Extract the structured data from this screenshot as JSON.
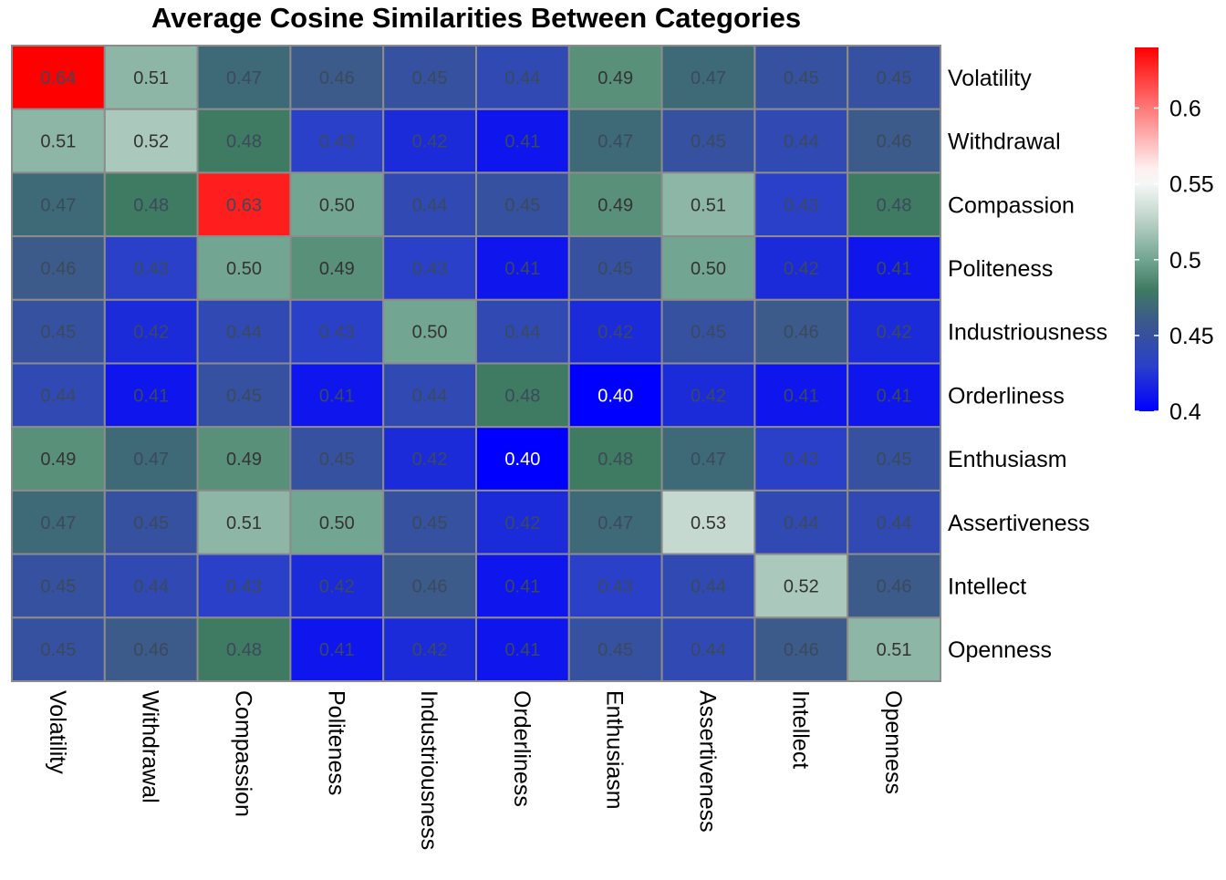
{
  "chart_data": {
    "type": "heatmap",
    "title": "Average Cosine Similarities Between Categories",
    "xlabel": "",
    "ylabel": "",
    "rows": [
      "Volatility",
      "Withdrawal",
      "Compassion",
      "Politeness",
      "Industriousness",
      "Orderliness",
      "Enthusiasm",
      "Assertiveness",
      "Intellect",
      "Openness"
    ],
    "columns": [
      "Volatility",
      "Withdrawal",
      "Compassion",
      "Politeness",
      "Industriousness",
      "Orderliness",
      "Enthusiasm",
      "Assertiveness",
      "Intellect",
      "Openness"
    ],
    "values": [
      [
        0.64,
        0.51,
        0.47,
        0.46,
        0.45,
        0.44,
        0.49,
        0.47,
        0.45,
        0.45
      ],
      [
        0.51,
        0.52,
        0.48,
        0.43,
        0.42,
        0.41,
        0.47,
        0.45,
        0.44,
        0.46
      ],
      [
        0.47,
        0.48,
        0.63,
        0.5,
        0.44,
        0.45,
        0.49,
        0.51,
        0.43,
        0.48
      ],
      [
        0.46,
        0.43,
        0.5,
        0.49,
        0.43,
        0.41,
        0.45,
        0.5,
        0.42,
        0.41
      ],
      [
        0.45,
        0.42,
        0.44,
        0.43,
        0.5,
        0.44,
        0.42,
        0.45,
        0.46,
        0.42
      ],
      [
        0.44,
        0.41,
        0.45,
        0.41,
        0.44,
        0.48,
        0.4,
        0.42,
        0.41,
        0.41
      ],
      [
        0.49,
        0.47,
        0.49,
        0.45,
        0.42,
        0.4,
        0.48,
        0.47,
        0.43,
        0.45
      ],
      [
        0.47,
        0.45,
        0.51,
        0.5,
        0.45,
        0.42,
        0.47,
        0.53,
        0.44,
        0.44
      ],
      [
        0.45,
        0.44,
        0.43,
        0.42,
        0.46,
        0.41,
        0.43,
        0.44,
        0.52,
        0.46
      ],
      [
        0.45,
        0.46,
        0.48,
        0.41,
        0.42,
        0.41,
        0.45,
        0.44,
        0.46,
        0.51
      ]
    ],
    "value_format": "0.00",
    "row_labels_position": "right",
    "column_labels_position": "bottom",
    "column_labels_rotation": "vertical",
    "legend": {
      "placement": "top-right",
      "type": "colorbar",
      "ticks": [
        0.4,
        0.45,
        0.5,
        0.55,
        0.6
      ],
      "tick_labels": [
        "0.4",
        "0.45",
        "0.5",
        "0.55",
        "0.6"
      ],
      "range": [
        0.4,
        0.64
      ]
    },
    "color_scale": {
      "stops": [
        {
          "value": 0.4,
          "color": "#0000ff"
        },
        {
          "value": 0.43,
          "color": "#2a40c8"
        },
        {
          "value": 0.46,
          "color": "#3c5a8a"
        },
        {
          "value": 0.48,
          "color": "#3f7a62"
        },
        {
          "value": 0.5,
          "color": "#72a592"
        },
        {
          "value": 0.53,
          "color": "#c6d9d0"
        },
        {
          "value": 0.555,
          "color": "#ffffff"
        },
        {
          "value": 0.64,
          "color": "#ff0000"
        }
      ],
      "cell_border": "#8c8c8c",
      "label_dark": "#333333",
      "label_muted": "#3b4a5a"
    },
    "grid": false
  }
}
